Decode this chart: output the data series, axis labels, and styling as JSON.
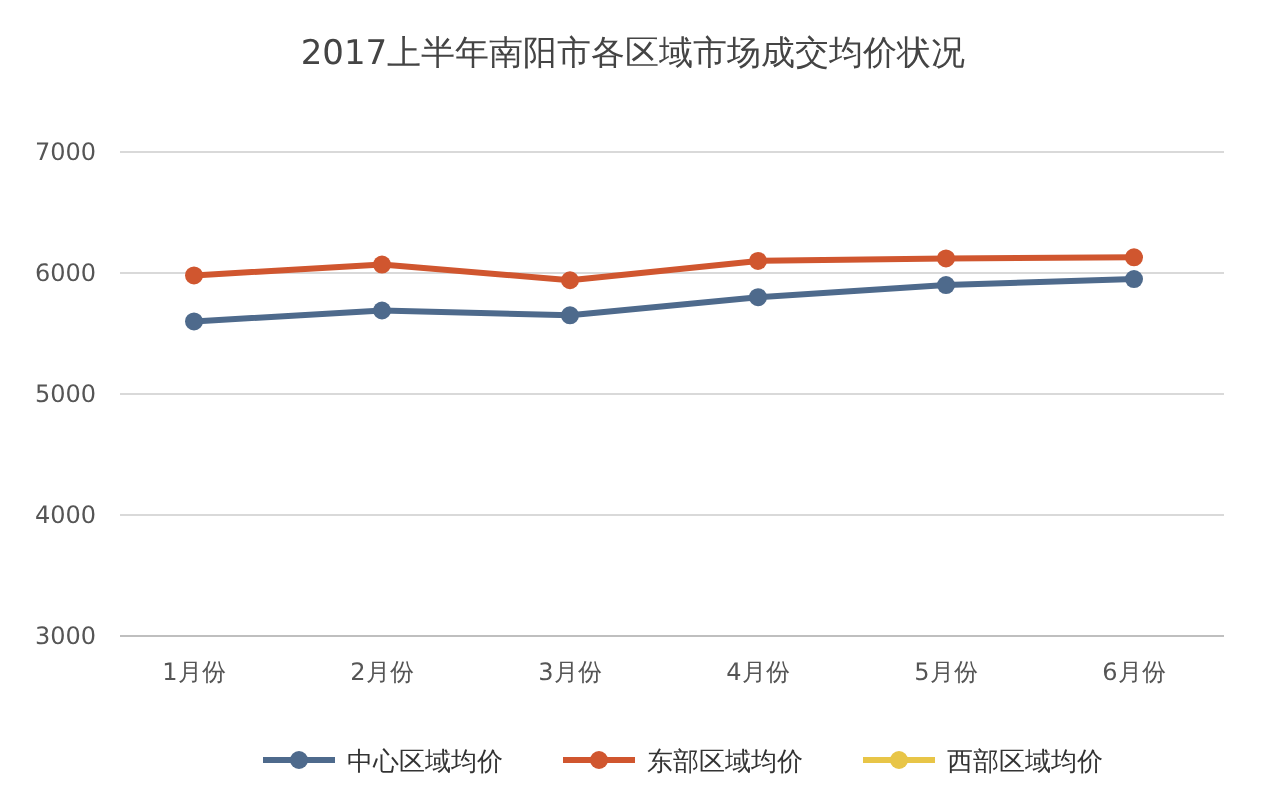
{
  "chart_data": {
    "type": "line",
    "title": "2017上半年南阳市各区域市场成交均价状况",
    "categories": [
      "1月份",
      "2月份",
      "3月份",
      "4月份",
      "5月份",
      "6月份"
    ],
    "series": [
      {
        "name": "中心区域均价",
        "color": "#4e6a8c",
        "values": [
          5600,
          5690,
          5650,
          5800,
          5900,
          5950
        ]
      },
      {
        "name": "东部区域均价",
        "color": "#d0562f",
        "values": [
          5980,
          6070,
          5940,
          6100,
          6120,
          6130
        ]
      },
      {
        "name": "西部区域均价",
        "color": "#e8c547",
        "values": [
          null,
          null,
          null,
          null,
          null,
          null
        ]
      }
    ],
    "ylim": [
      3000,
      7000
    ],
    "yticks": [
      3000,
      4000,
      5000,
      6000,
      7000
    ],
    "grid": "y",
    "legend": "bottom",
    "marker": "circle",
    "line_style": "solid"
  }
}
